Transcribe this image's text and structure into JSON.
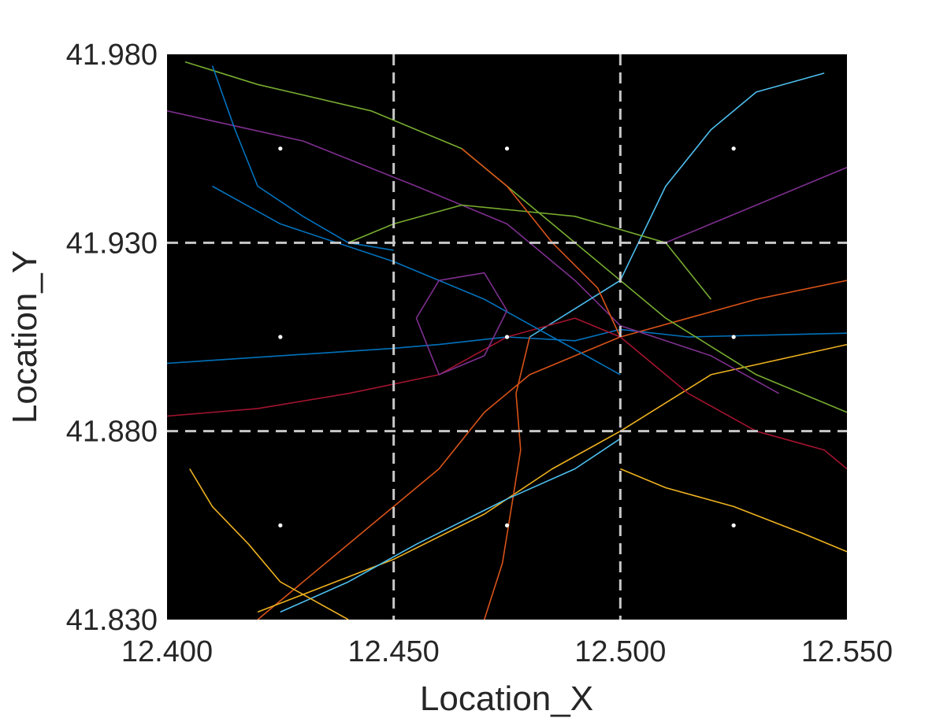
{
  "chart_data": {
    "type": "line",
    "xlabel": "Location_X",
    "ylabel": "Location_Y",
    "xlim": [
      12.4,
      12.55
    ],
    "ylim": [
      41.83,
      41.98
    ],
    "xticks": [
      "12.400",
      "12.450",
      "12.500",
      "12.550"
    ],
    "yticks": [
      "41.830",
      "41.880",
      "41.930",
      "41.980"
    ],
    "x_tick_values": [
      12.4,
      12.45,
      12.5,
      12.55
    ],
    "y_tick_values": [
      41.83,
      41.88,
      41.93,
      41.98
    ],
    "plot_background": "#000000",
    "grid_lines": {
      "x": [
        12.45,
        12.5
      ],
      "y": [
        41.88,
        41.93
      ],
      "style": "dashed",
      "color": "#c8c8c8"
    },
    "cell_center_points": [
      {
        "x": 12.425,
        "y": 41.955
      },
      {
        "x": 12.475,
        "y": 41.955
      },
      {
        "x": 12.525,
        "y": 41.955
      },
      {
        "x": 12.425,
        "y": 41.905
      },
      {
        "x": 12.475,
        "y": 41.905
      },
      {
        "x": 12.525,
        "y": 41.905
      },
      {
        "x": 12.425,
        "y": 41.855
      },
      {
        "x": 12.475,
        "y": 41.855
      },
      {
        "x": 12.525,
        "y": 41.855
      }
    ],
    "series_colors": [
      "#0072bd",
      "#d95319",
      "#edb120",
      "#7e2f8e",
      "#77ac30",
      "#4dbeee",
      "#a2142f"
    ],
    "series": [
      {
        "x": [
          12.4,
          12.45,
          12.46,
          12.475,
          12.49,
          12.5,
          12.515,
          12.55
        ],
        "y": [
          41.898,
          41.902,
          41.903,
          41.905,
          41.904,
          41.907,
          41.905,
          41.906
        ]
      },
      {
        "x": [
          12.42,
          12.445,
          12.46,
          12.47,
          12.48,
          12.49,
          12.5,
          12.53,
          12.55
        ],
        "y": [
          41.83,
          41.855,
          41.87,
          41.885,
          41.895,
          41.9,
          41.905,
          41.915,
          41.92
        ]
      },
      {
        "x": [
          12.42,
          12.45,
          12.47,
          12.485,
          12.5,
          12.52,
          12.55
        ],
        "y": [
          41.832,
          41.846,
          41.858,
          41.87,
          41.88,
          41.895,
          41.903
        ]
      },
      {
        "x": [
          12.4,
          12.43,
          12.455,
          12.475,
          12.49,
          12.5,
          12.52,
          12.535
        ],
        "y": [
          41.965,
          41.957,
          41.945,
          41.935,
          41.92,
          41.908,
          41.9,
          41.89
        ]
      },
      {
        "x": [
          12.404,
          12.42,
          12.445,
          12.465,
          12.48,
          12.495,
          12.51,
          12.53,
          12.55
        ],
        "y": [
          41.978,
          41.972,
          41.965,
          41.955,
          41.94,
          41.925,
          41.91,
          41.895,
          41.885
        ]
      },
      {
        "x": [
          12.48,
          12.5,
          12.51,
          12.52,
          12.53,
          12.545
        ],
        "y": [
          41.905,
          41.92,
          41.945,
          41.96,
          41.97,
          41.975
        ]
      },
      {
        "x": [
          12.4,
          12.42,
          12.44,
          12.46,
          12.475,
          12.49,
          12.5
        ],
        "y": [
          41.884,
          41.886,
          41.89,
          41.895,
          41.905,
          41.91,
          41.905
        ]
      },
      {
        "x": [
          12.41,
          12.425,
          12.45,
          12.47,
          12.485,
          12.5
        ],
        "y": [
          41.945,
          41.935,
          41.925,
          41.915,
          41.905,
          41.895
        ]
      },
      {
        "x": [
          12.47,
          12.474,
          12.476,
          12.478,
          12.477,
          12.48
        ],
        "y": [
          41.83,
          41.845,
          41.86,
          41.875,
          41.89,
          41.905
        ]
      },
      {
        "x": [
          12.5,
          12.51,
          12.525,
          12.54,
          12.55
        ],
        "y": [
          41.87,
          41.865,
          41.86,
          41.853,
          41.848
        ]
      },
      {
        "x": [
          12.455,
          12.46,
          12.47,
          12.475,
          12.47,
          12.46,
          12.455
        ],
        "y": [
          41.91,
          41.92,
          41.922,
          41.912,
          41.9,
          41.895,
          41.91
        ]
      },
      {
        "x": [
          12.44,
          12.45,
          12.465,
          12.49,
          12.51,
          12.52
        ],
        "y": [
          41.93,
          41.935,
          41.94,
          41.937,
          41.93,
          41.915
        ]
      },
      {
        "x": [
          12.425,
          12.44,
          12.455,
          12.475,
          12.49,
          12.5
        ],
        "y": [
          41.832,
          41.84,
          41.85,
          41.862,
          41.87,
          41.878
        ]
      },
      {
        "x": [
          12.5,
          12.505,
          12.515,
          12.53,
          12.545,
          12.55
        ],
        "y": [
          41.905,
          41.9,
          41.89,
          41.88,
          41.875,
          41.87
        ]
      },
      {
        "x": [
          12.41,
          12.415,
          12.42,
          12.43,
          12.44,
          12.45
        ],
        "y": [
          41.977,
          41.96,
          41.945,
          41.937,
          41.93,
          41.928
        ]
      },
      {
        "x": [
          12.465,
          12.475,
          12.485,
          12.495,
          12.5
        ],
        "y": [
          41.955,
          41.945,
          41.93,
          41.918,
          41.905
        ]
      },
      {
        "x": [
          12.405,
          12.41,
          12.418,
          12.425,
          12.44
        ],
        "y": [
          41.87,
          41.86,
          41.85,
          41.84,
          41.83
        ]
      },
      {
        "x": [
          12.51,
          12.52,
          12.53,
          12.54,
          12.55
        ],
        "y": [
          41.93,
          41.935,
          41.94,
          41.945,
          41.95
        ]
      }
    ]
  }
}
